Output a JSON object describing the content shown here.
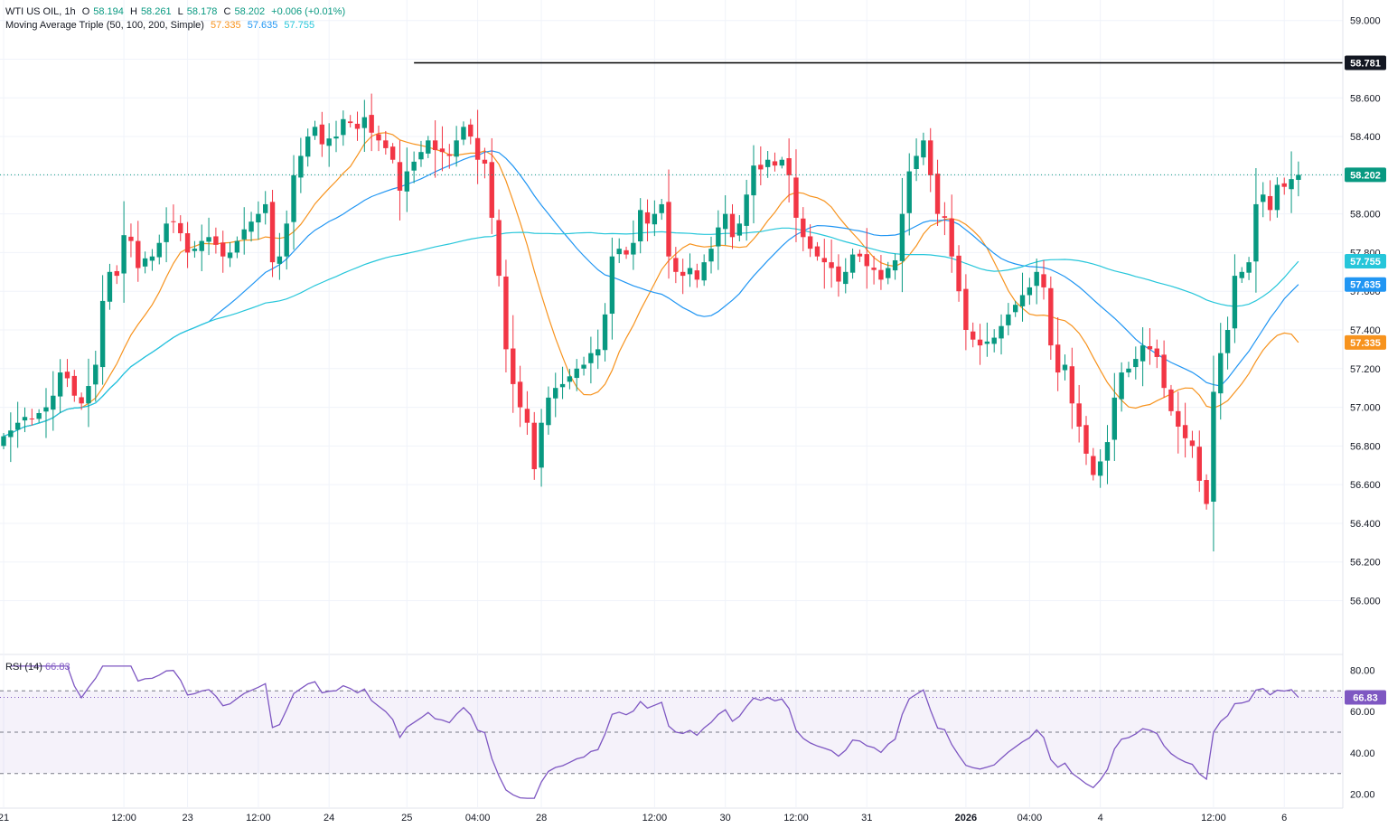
{
  "legend": {
    "symbol": "WTI US OIL, 1h",
    "open_label": "O",
    "open": "58.194",
    "high_label": "H",
    "high": "58.261",
    "low_label": "L",
    "low": "58.178",
    "close_label": "C",
    "close": "58.202",
    "change": "+0.006 (+0.01%)",
    "ma_title": "Moving Average Triple (50, 100, 200, Simple)",
    "ma50": "57.335",
    "ma100": "57.635",
    "ma200": "57.755"
  },
  "rsi_legend": {
    "title": "RSI (14)",
    "value": "66.83"
  },
  "colors": {
    "up": "#089981",
    "down": "#f23645",
    "ma50": "#f7931e",
    "ma100": "#2196f3",
    "ma200": "#26c6da",
    "rsi": "#7e57c2",
    "level_line": "#000000"
  },
  "chart_data": [
    {
      "type": "candlestick",
      "title": "WTI US OIL, 1h",
      "ylim": [
        55.75,
        59.05
      ],
      "y_ticks": [
        "59.000",
        "58.800",
        "58.600",
        "58.400",
        "58.200",
        "58.000",
        "57.800",
        "57.600",
        "57.400",
        "57.200",
        "57.000",
        "56.800",
        "56.600",
        "56.400",
        "56.200",
        "56.000"
      ],
      "x_ticks": [
        {
          "label": "21",
          "bar": 0
        },
        {
          "label": "12:00",
          "bar": 17
        },
        {
          "label": "23",
          "bar": 26
        },
        {
          "label": "12:00",
          "bar": 36
        },
        {
          "label": "24",
          "bar": 46
        },
        {
          "label": "25",
          "bar": 57
        },
        {
          "label": "04:00",
          "bar": 67
        },
        {
          "label": "28",
          "bar": 76
        },
        {
          "label": "12:00",
          "bar": 92
        },
        {
          "label": "30",
          "bar": 102
        },
        {
          "label": "12:00",
          "bar": 112
        },
        {
          "label": "31",
          "bar": 122
        },
        {
          "label": "2026",
          "bar": 136
        },
        {
          "label": "04:00",
          "bar": 145
        },
        {
          "label": "4",
          "bar": 155
        },
        {
          "label": "12:00",
          "bar": 171
        },
        {
          "label": "6",
          "bar": 181
        }
      ],
      "horizontal_line": {
        "value": 58.781,
        "label": "58.781",
        "from_bar": 58
      },
      "last_price": {
        "value": 58.202,
        "label": "58.202"
      },
      "ma_labels": [
        {
          "name": "MA200",
          "value": 57.755,
          "label": "57.755"
        },
        {
          "name": "MA100",
          "value": 57.635,
          "label": "57.635"
        },
        {
          "name": "MA50",
          "value": 57.335,
          "label": "57.335"
        }
      ],
      "close": [
        56.85,
        56.88,
        56.92,
        56.95,
        56.94,
        56.97,
        57.0,
        57.06,
        57.18,
        57.15,
        57.06,
        57.02,
        57.11,
        57.22,
        57.55,
        57.7,
        57.68,
        57.89,
        57.86,
        57.72,
        57.77,
        57.78,
        57.85,
        57.95,
        57.96,
        57.9,
        57.8,
        57.82,
        57.86,
        57.88,
        57.84,
        57.78,
        57.8,
        57.86,
        57.92,
        57.96,
        58.0,
        58.05,
        57.75,
        57.78,
        57.95,
        58.2,
        58.3,
        58.4,
        58.45,
        58.36,
        58.39,
        58.4,
        58.49,
        58.47,
        58.44,
        58.5,
        58.42,
        58.38,
        58.34,
        58.28,
        58.12,
        58.22,
        58.27,
        58.32,
        58.38,
        58.33,
        58.32,
        58.3,
        58.38,
        58.45,
        58.4,
        58.28,
        58.26,
        57.98,
        57.68,
        57.3,
        57.12,
        57.0,
        56.92,
        56.68,
        56.92,
        57.05,
        57.1,
        57.12,
        57.16,
        57.2,
        57.22,
        57.28,
        57.3,
        57.48,
        57.78,
        57.82,
        57.79,
        57.85,
        58.02,
        57.95,
        58.0,
        58.05,
        57.78,
        57.7,
        57.68,
        57.72,
        57.66,
        57.75,
        57.82,
        57.93,
        58.0,
        57.88,
        57.95,
        58.1,
        58.25,
        58.23,
        58.28,
        58.25,
        58.28,
        58.2,
        57.98,
        57.88,
        57.82,
        57.78,
        57.75,
        57.72,
        57.65,
        57.7,
        57.79,
        57.78,
        57.73,
        57.71,
        57.66,
        57.72,
        57.76,
        58.0,
        58.22,
        58.3,
        58.38,
        58.2,
        58.0,
        57.98,
        57.78,
        57.6,
        57.4,
        57.35,
        57.32,
        57.34,
        57.36,
        57.42,
        57.48,
        57.53,
        57.58,
        57.62,
        57.7,
        57.62,
        57.32,
        57.18,
        57.22,
        57.02,
        56.9,
        56.76,
        56.65,
        56.72,
        56.82,
        57.05,
        57.18,
        57.2,
        57.25,
        57.32,
        57.3,
        57.26,
        57.1,
        56.98,
        56.9,
        56.84,
        56.8,
        56.62,
        56.5,
        57.08,
        57.28,
        57.4,
        57.68,
        57.7,
        57.75,
        58.05,
        58.1,
        58.02,
        58.15,
        58.14,
        58.18,
        58.202
      ],
      "ma50_tail": [
        57.16,
        57.18,
        57.2,
        57.22,
        57.24,
        57.26,
        57.28,
        57.3,
        57.32,
        57.33,
        57.34,
        57.335
      ],
      "ma100_tail": [
        57.58,
        57.59,
        57.6,
        57.6,
        57.61,
        57.61,
        57.62,
        57.62,
        57.63,
        57.63,
        57.635
      ],
      "ma200_tail": [
        57.6,
        57.62,
        57.64,
        57.66,
        57.68,
        57.7,
        57.72,
        57.74,
        57.755
      ]
    },
    {
      "type": "line",
      "title": "RSI (14)",
      "ylim": [
        15,
        85
      ],
      "y_ticks": [
        "80.00",
        "60.00",
        "40.00",
        "20.00"
      ],
      "bands": {
        "upper": 70,
        "middle": 50,
        "lower": 30
      },
      "last_value": {
        "value": 66.83,
        "label": "66.83"
      }
    }
  ]
}
